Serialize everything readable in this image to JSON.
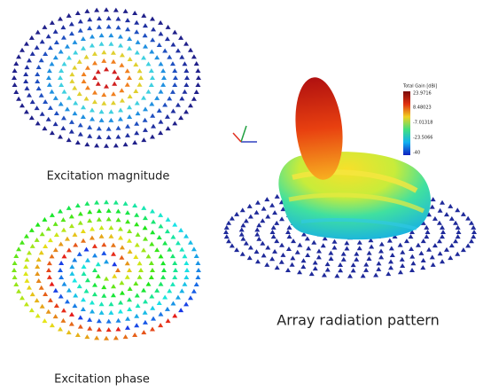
{
  "panels": [
    {
      "caption": "Excitation magnitude"
    },
    {
      "caption": "Excitation phase"
    },
    {
      "caption": "Array radiation pattern"
    }
  ],
  "colorbar": {
    "title": "Total Gain [dBi]",
    "labels": [
      "23.9716",
      "8.48023",
      "-7.01318",
      "-23.5066",
      "-40"
    ]
  }
}
